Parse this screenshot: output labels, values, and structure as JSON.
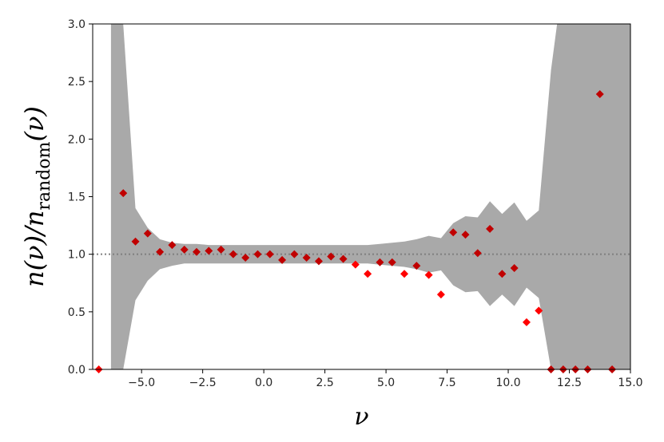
{
  "chart_data": {
    "type": "scatter",
    "xlabel": "ν",
    "ylabel": "n(ν)/n_random(ν)",
    "ylabel_parts": {
      "num": "n(ν)/n",
      "sub": "random",
      "tail": "(ν)"
    },
    "xlim": [
      -7.0,
      15.0
    ],
    "ylim": [
      0.0,
      3.0
    ],
    "xticks": [
      -5.0,
      -2.5,
      0.0,
      2.5,
      5.0,
      7.5,
      10.0,
      12.5,
      15.0
    ],
    "xtick_labels": [
      "−5.0",
      "−2.5",
      "0.0",
      "2.5",
      "5.0",
      "7.5",
      "10.0",
      "12.5",
      "15.0"
    ],
    "yticks": [
      0.0,
      0.5,
      1.0,
      1.5,
      2.0,
      2.5,
      3.0
    ],
    "ytick_labels": [
      "0.0",
      "0.5",
      "1.0",
      "1.5",
      "2.0",
      "2.5",
      "3.0"
    ],
    "reference_line": {
      "y": 1.0,
      "style": "dotted",
      "color": "#7f7f7f"
    },
    "band": {
      "color": "#a9a9a9",
      "x": [
        -6.25,
        -6.2,
        -5.75,
        -5.25,
        -4.75,
        -4.25,
        -3.75,
        -3.25,
        -2.75,
        -2.25,
        -1.75,
        -1.25,
        -0.75,
        -0.25,
        0.25,
        0.75,
        1.25,
        1.75,
        2.25,
        2.75,
        3.25,
        3.75,
        4.25,
        4.75,
        5.25,
        5.75,
        6.25,
        6.75,
        7.25,
        7.75,
        8.25,
        8.75,
        9.25,
        9.75,
        10.25,
        10.75,
        11.25,
        11.75,
        12.0,
        15.0
      ],
      "upper": [
        3.0,
        3.0,
        3.0,
        1.4,
        1.23,
        1.13,
        1.1,
        1.09,
        1.09,
        1.08,
        1.08,
        1.08,
        1.08,
        1.08,
        1.08,
        1.08,
        1.08,
        1.08,
        1.08,
        1.08,
        1.08,
        1.08,
        1.08,
        1.09,
        1.1,
        1.11,
        1.13,
        1.16,
        1.14,
        1.27,
        1.33,
        1.32,
        1.46,
        1.35,
        1.45,
        1.29,
        1.38,
        2.6,
        3.0,
        3.0
      ],
      "lower": [
        0.0,
        0.0,
        0.0,
        0.6,
        0.77,
        0.87,
        0.9,
        0.92,
        0.92,
        0.92,
        0.92,
        0.92,
        0.92,
        0.92,
        0.92,
        0.92,
        0.92,
        0.92,
        0.92,
        0.92,
        0.92,
        0.92,
        0.92,
        0.91,
        0.9,
        0.89,
        0.87,
        0.84,
        0.86,
        0.73,
        0.67,
        0.68,
        0.55,
        0.65,
        0.55,
        0.71,
        0.62,
        0.0,
        0.0,
        0.0
      ]
    },
    "series": [
      {
        "color": "#c00000",
        "marker": "diamond",
        "x": [
          -6.75,
          -5.75,
          -5.25,
          -4.75,
          -4.25,
          -3.75,
          -3.25,
          -2.75,
          -2.25,
          -1.75,
          -1.25,
          -0.75,
          -0.25,
          0.25,
          0.75,
          1.25,
          1.75,
          2.25,
          2.75,
          3.25,
          3.75,
          4.25,
          4.75,
          5.25,
          5.75,
          6.25,
          6.75,
          7.25,
          7.75,
          8.25,
          8.75,
          9.25,
          9.75,
          10.25,
          10.75,
          11.25,
          11.75,
          12.25,
          12.75,
          13.25,
          13.75,
          14.25
        ],
        "y": [
          0.0,
          1.53,
          1.11,
          1.18,
          1.02,
          1.08,
          1.04,
          1.02,
          1.03,
          1.04,
          1.0,
          0.97,
          1.0,
          1.0,
          0.95,
          1.0,
          0.97,
          0.94,
          0.98,
          0.96,
          0.91,
          0.83,
          0.93,
          0.93,
          0.83,
          0.9,
          0.82,
          0.65,
          1.19,
          1.17,
          1.01,
          1.22,
          0.83,
          0.88,
          0.41,
          0.51,
          0.0,
          0.0,
          0.0,
          0.0,
          2.39,
          0.0
        ]
      }
    ]
  }
}
